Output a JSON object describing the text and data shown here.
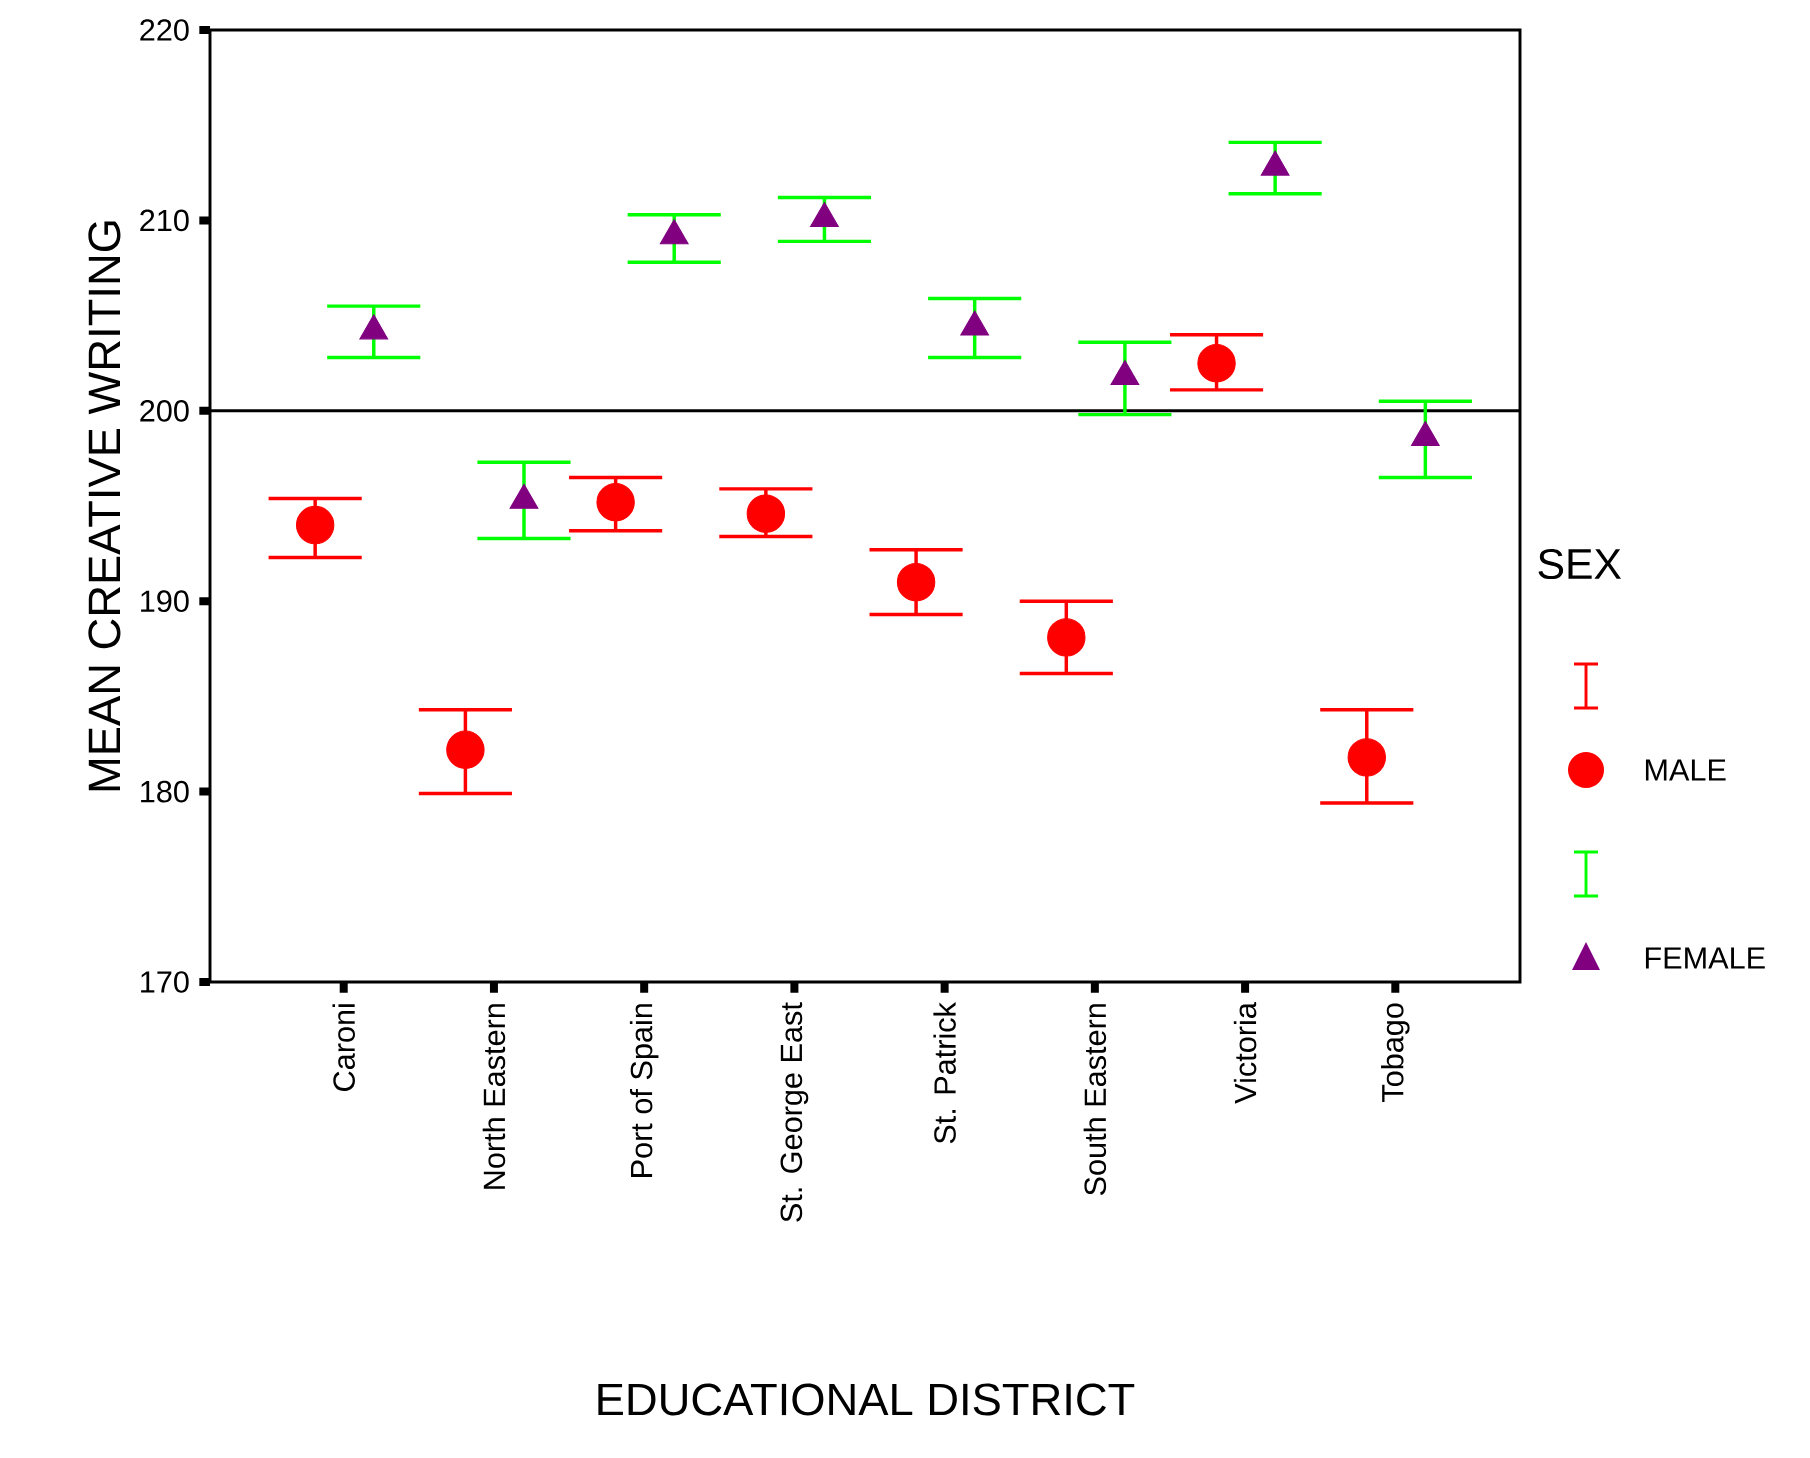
{
  "chart_data": {
    "type": "scatter",
    "xlabel": "EDUCATIONAL DISTRICT",
    "ylabel": "MEAN CREATIVE WRITING",
    "legend_title": "SEX",
    "categories": [
      "Caroni",
      "North Eastern",
      "Port of Spain",
      "St. George East",
      "St. Patrick",
      "South Eastern",
      "Victoria",
      "Tobago"
    ],
    "ylim": [
      170,
      220
    ],
    "yticks": [
      170,
      180,
      190,
      200,
      210,
      220
    ],
    "grid": false,
    "legend": "right",
    "ref_lines": [
      {
        "axis": "y",
        "value": 200,
        "color": "#000000"
      }
    ],
    "series": [
      {
        "name": "MALE",
        "color": "#ff0000",
        "marker": "circle",
        "values": [
          194.0,
          182.2,
          195.2,
          194.6,
          191.0,
          188.1,
          202.5,
          181.8
        ],
        "errors": [
          [
            192.3,
            195.4
          ],
          [
            179.9,
            184.3
          ],
          [
            193.7,
            196.5
          ],
          [
            193.4,
            195.9
          ],
          [
            189.3,
            192.7
          ],
          [
            186.2,
            190.0
          ],
          [
            201.1,
            204.0
          ],
          [
            179.4,
            184.3
          ]
        ]
      },
      {
        "name": "FEMALE",
        "color": "#800080",
        "marker": "triangle",
        "values": [
          204.2,
          195.3,
          209.2,
          210.1,
          204.4,
          201.8,
          212.8,
          198.6
        ],
        "errors": [
          [
            202.8,
            205.5
          ],
          [
            193.3,
            197.3
          ],
          [
            207.8,
            210.3
          ],
          [
            208.9,
            211.2
          ],
          [
            202.8,
            205.9
          ],
          [
            199.8,
            203.6
          ],
          [
            211.4,
            214.1
          ],
          [
            196.5,
            200.5
          ]
        ]
      }
    ]
  }
}
